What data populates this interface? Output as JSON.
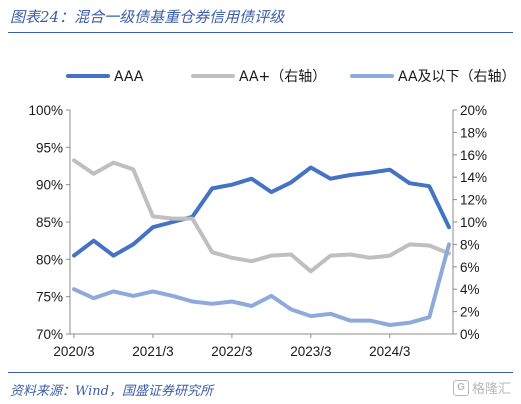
{
  "header": {
    "title": "图表24：混合一级债基重仓券信用债评级"
  },
  "footer": {
    "source": "资料来源：Wind，国盛证券研究所",
    "watermark": "格隆汇"
  },
  "chart_data": {
    "type": "line",
    "x_tick_labels": [
      "2020/3",
      "2021/3",
      "2022/3",
      "2023/3",
      "2024/3"
    ],
    "y_left": {
      "lim": [
        70,
        100
      ],
      "ticks": [
        "70%",
        "75%",
        "80%",
        "85%",
        "90%",
        "95%",
        "100%"
      ]
    },
    "y_right": {
      "lim": [
        0,
        20
      ],
      "ticks": [
        "0%",
        "2%",
        "4%",
        "6%",
        "8%",
        "10%",
        "12%",
        "14%",
        "16%",
        "18%",
        "20%"
      ]
    },
    "grid": false,
    "legend_position": "top",
    "series": [
      {
        "name": "AAA",
        "axis": "left",
        "color": "#4472c4",
        "values": [
          80.5,
          82.5,
          80.5,
          82.0,
          84.3,
          85.0,
          85.7,
          89.5,
          90.0,
          90.8,
          89.0,
          90.3,
          92.3,
          90.8,
          91.3,
          91.6,
          92.0,
          90.2,
          89.8,
          84.3
        ]
      },
      {
        "name": "AA+（右轴）",
        "axis": "right",
        "color": "#bfbfbf",
        "values": [
          15.5,
          14.3,
          15.3,
          14.7,
          10.5,
          10.3,
          10.3,
          7.3,
          6.8,
          6.5,
          7.0,
          7.1,
          5.6,
          7.0,
          7.1,
          6.8,
          7.0,
          8.0,
          7.9,
          7.2
        ]
      },
      {
        "name": "AA及以下（右轴）",
        "axis": "right",
        "color": "#8eaadb",
        "values": [
          4.0,
          3.2,
          3.8,
          3.4,
          3.8,
          3.4,
          2.9,
          2.7,
          2.9,
          2.5,
          3.4,
          2.2,
          1.6,
          1.8,
          1.2,
          1.2,
          0.8,
          1.0,
          1.5,
          8.0
        ]
      }
    ]
  }
}
